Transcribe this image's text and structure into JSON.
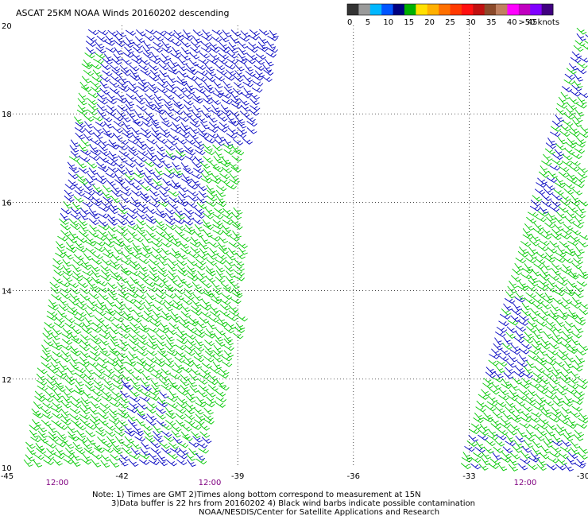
{
  "title": "ASCAT 25KM NOAA Winds 20160202 descending",
  "colorbar": {
    "tick_labels": [
      "0",
      "5",
      "10",
      "15",
      "20",
      "25",
      "30",
      "35",
      "40",
      "45",
      ">50 knots"
    ],
    "colors": [
      "#333333",
      "#9a9a9a",
      "#00b7ff",
      "#0055ff",
      "#00007f",
      "#00b000",
      "#ffe000",
      "#ffb000",
      "#ff7000",
      "#ff3a00",
      "#ff1010",
      "#c01010",
      "#8b4a2b",
      "#c08060",
      "#ff00ff",
      "#c000c0",
      "#8000ff",
      "#400080"
    ]
  },
  "map": {
    "lon_range": [
      -45,
      -30
    ],
    "lat_range": [
      10,
      20
    ],
    "lon_tick_labels": [
      "-45",
      "-42",
      "-39",
      "-36",
      "-33",
      "-30"
    ],
    "lat_tick_labels": [
      "20",
      "18",
      "16",
      "14",
      "12",
      "10"
    ],
    "time_labels": [
      "12:00",
      "12:00",
      "12:00"
    ],
    "barb_colors": {
      "green": "#00c800",
      "blue": "#0000c0"
    }
  },
  "notes": {
    "line1": "Note: 1) Times are GMT 2)Times along bottom correspond to measurement at 15N",
    "line2": "3)Data buffer is 22 hrs from 20160202 4) Black wind barbs indicate possible contamination",
    "line3": "NOAA/NESDIS/Center for Satellite Applications and Research"
  }
}
